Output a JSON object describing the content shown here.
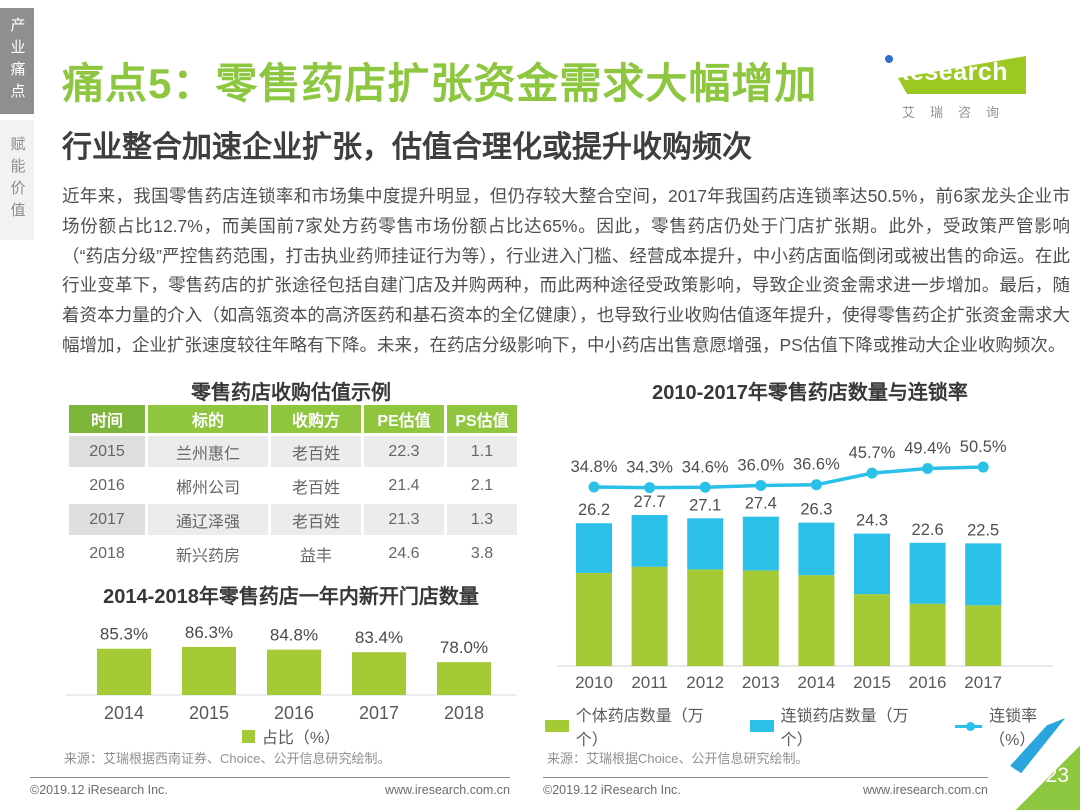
{
  "sidebar": {
    "tabs": [
      {
        "label": "产业痛点",
        "active": true
      },
      {
        "label": "赋能价值",
        "active": false
      }
    ]
  },
  "header": {
    "title": "痛点5：零售药店扩张资金需求大幅增加",
    "subtitle": "行业整合加速企业扩张，估值合理化或提升收购频次",
    "logo": {
      "brand": "iResearch",
      "caption": "艾瑞咨询"
    }
  },
  "body_text": "近年来，我国零售药店连锁率和市场集中度提升明显，但仍存较大整合空间，2017年我国药店连锁率达50.5%，前6家龙头企业市场份额占比12.7%，而美国前7家处方药零售市场份额占比达65%。因此，零售药店仍处于门店扩张期。此外，受政策严管影响（“药店分级”严控售药范围，打击执业药师挂证行为等），行业进入门槛、经营成本提升，中小药店面临倒闭或被出售的命运。在此行业变革下，零售药店的扩张途径包括自建门店及并购两种，而此两种途径受政策影响，导致企业资金需求进一步增加。最后，随着资本力量的介入（如高瓴资本的高济医药和基石资本的全亿健康），也导致行业收购估值逐年提升，使得零售药企扩张资金需求大幅增加，企业扩张速度较往年略有下降。未来，在药店分级影响下，中小药店出售意愿增强，PS估值下降或推动大企业收购频次。",
  "valuation_table": {
    "title": "零售药店收购估值示例",
    "headers": [
      "时间",
      "标的",
      "收购方",
      "PE估值",
      "PS估值"
    ],
    "rows": [
      [
        "2015",
        "兰州惠仁",
        "老百姓",
        "22.3",
        "1.1"
      ],
      [
        "2016",
        "郴州公司",
        "老百姓",
        "21.4",
        "2.1"
      ],
      [
        "2017",
        "通辽泽强",
        "老百姓",
        "21.3",
        "1.3"
      ],
      [
        "2018",
        "新兴药房",
        "益丰",
        "24.6",
        "3.8"
      ]
    ]
  },
  "chart_data": [
    {
      "id": "new-store-share",
      "type": "bar",
      "title": "2014-2018年零售药店一年内新开门店数量",
      "categories": [
        "2014",
        "2015",
        "2016",
        "2017",
        "2018"
      ],
      "values": [
        85.3,
        86.3,
        84.8,
        83.4,
        78.0
      ],
      "value_labels": [
        "85.3%",
        "86.3%",
        "84.8%",
        "83.4%",
        "78.0%"
      ],
      "xlabel": "",
      "ylabel": "",
      "ylim": [
        60,
        95
      ],
      "grid": false,
      "bar_color": "#a4ca36",
      "legend": [
        {
          "label": "占比（%）",
          "swatch": "square",
          "color": "#a4ca36"
        }
      ],
      "legend_position": "bottom",
      "source": "来源：艾瑞根据西南证券、Choice、公开信息研究绘制。"
    },
    {
      "id": "store-count-chain-rate",
      "type": "bar+line",
      "title": "2010-2017年零售药店数量与连锁率",
      "categories": [
        "2010",
        "2011",
        "2012",
        "2013",
        "2014",
        "2015",
        "2016",
        "2017"
      ],
      "totals": [
        26.2,
        27.7,
        27.1,
        27.4,
        26.3,
        24.3,
        22.6,
        22.5
      ],
      "total_labels": [
        "26.2",
        "27.7",
        "27.1",
        "27.4",
        "26.3",
        "24.3",
        "22.6",
        "22.5"
      ],
      "chain_rate": [
        34.8,
        34.3,
        34.6,
        36.0,
        36.6,
        45.7,
        49.4,
        50.5
      ],
      "rate_labels": [
        "34.8%",
        "34.3%",
        "34.6%",
        "36.0%",
        "36.6%",
        "45.7%",
        "49.4%",
        "50.5%"
      ],
      "stacking": "个体药店 = 总数×(1-连锁率)，连锁药店 = 总数×连锁率",
      "bar_colors": {
        "individual": "#a4ca36",
        "chain": "#2bc0e8"
      },
      "line_color": "#2bc0e8",
      "grid": false,
      "legend": [
        {
          "label": "个体药店数量（万个）",
          "swatch": "rect",
          "color": "#a4ca36"
        },
        {
          "label": "连锁药店数量（万个）",
          "swatch": "rect",
          "color": "#2bc0e8"
        },
        {
          "label": "连锁率（%）",
          "swatch": "line",
          "color": "#2bc0e8"
        }
      ],
      "legend_position": "bottom",
      "source": "来源：艾瑞根据Choice、公开信息研究绘制。"
    }
  ],
  "footer": {
    "copyright": "©2019.12 iResearch Inc.",
    "website": "www.iresearch.com.cn",
    "page": "23"
  },
  "colors": {
    "brand_green": "#8dc63f",
    "bar_green": "#a4ca36",
    "cyan": "#2bc0e8",
    "corner_blue": "#2aa5dd",
    "tab_gray": "#8f8f8f"
  }
}
